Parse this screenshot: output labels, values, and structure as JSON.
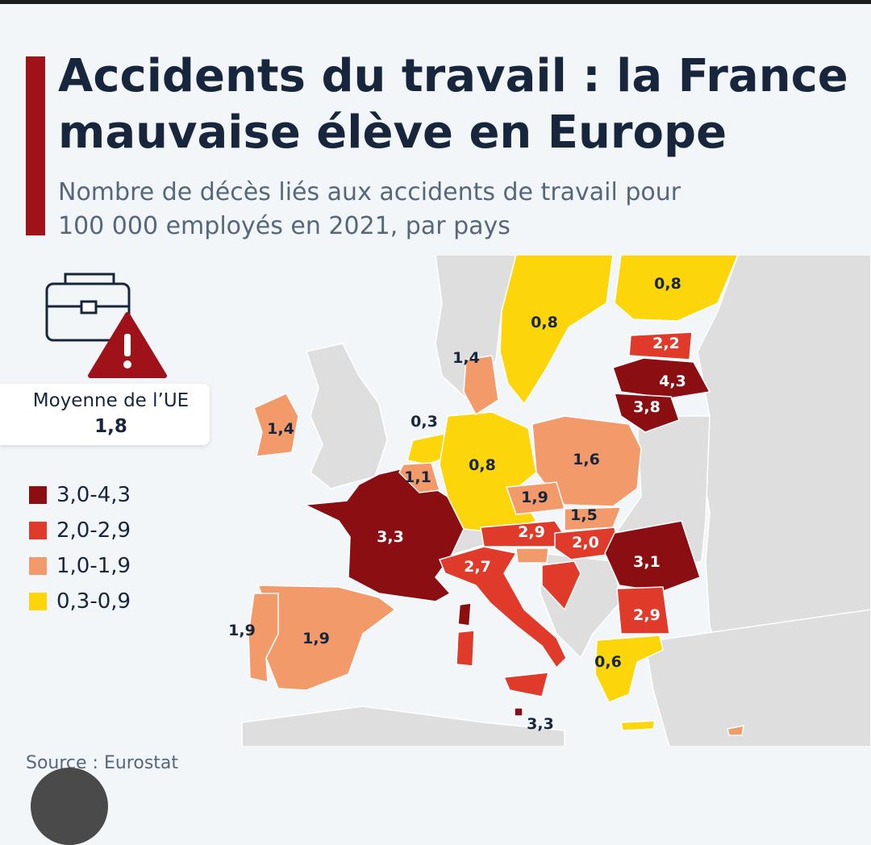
{
  "title": "Accidents du travail : la France mauvaise élève en Europe",
  "subtitle": "Nombre de décès liés aux accidents de travail pour 100 000 employés en 2021, par pays",
  "eu_average": {
    "label": "Moyenne de l’UE",
    "value": "1,8"
  },
  "legend": [
    {
      "label": "3,0-4,3",
      "color": "#8b0e12"
    },
    {
      "label": "2,0-2,9",
      "color": "#e03a2a"
    },
    {
      "label": "1,0-1,9",
      "color": "#f39a6b"
    },
    {
      "label": "0,3-0,9",
      "color": "#fcd60a"
    }
  ],
  "source": "Source : Eurostat",
  "icons": {
    "briefcase": "briefcase-icon",
    "warning": "warning-icon"
  },
  "map": {
    "countries": {
      "france": "3,3",
      "spain": "1,9",
      "portugal": "1,9",
      "ireland": "1,4",
      "netherlands": "0,3",
      "belgium": "1,1",
      "germany": "0,8",
      "denmark": "1,4",
      "sweden": "0,8",
      "finland": "0,8",
      "estonia": "2,2",
      "latvia": "4,3",
      "lithuania": "3,8",
      "poland": "1,6",
      "czechia": "1,9",
      "slovakia": "1,5",
      "austria": "2,9",
      "hungary": "2,0",
      "romania": "3,1",
      "bulgaria": "2,9",
      "italy": "2,7",
      "greece": "0,6",
      "malta": "3,3"
    }
  }
}
